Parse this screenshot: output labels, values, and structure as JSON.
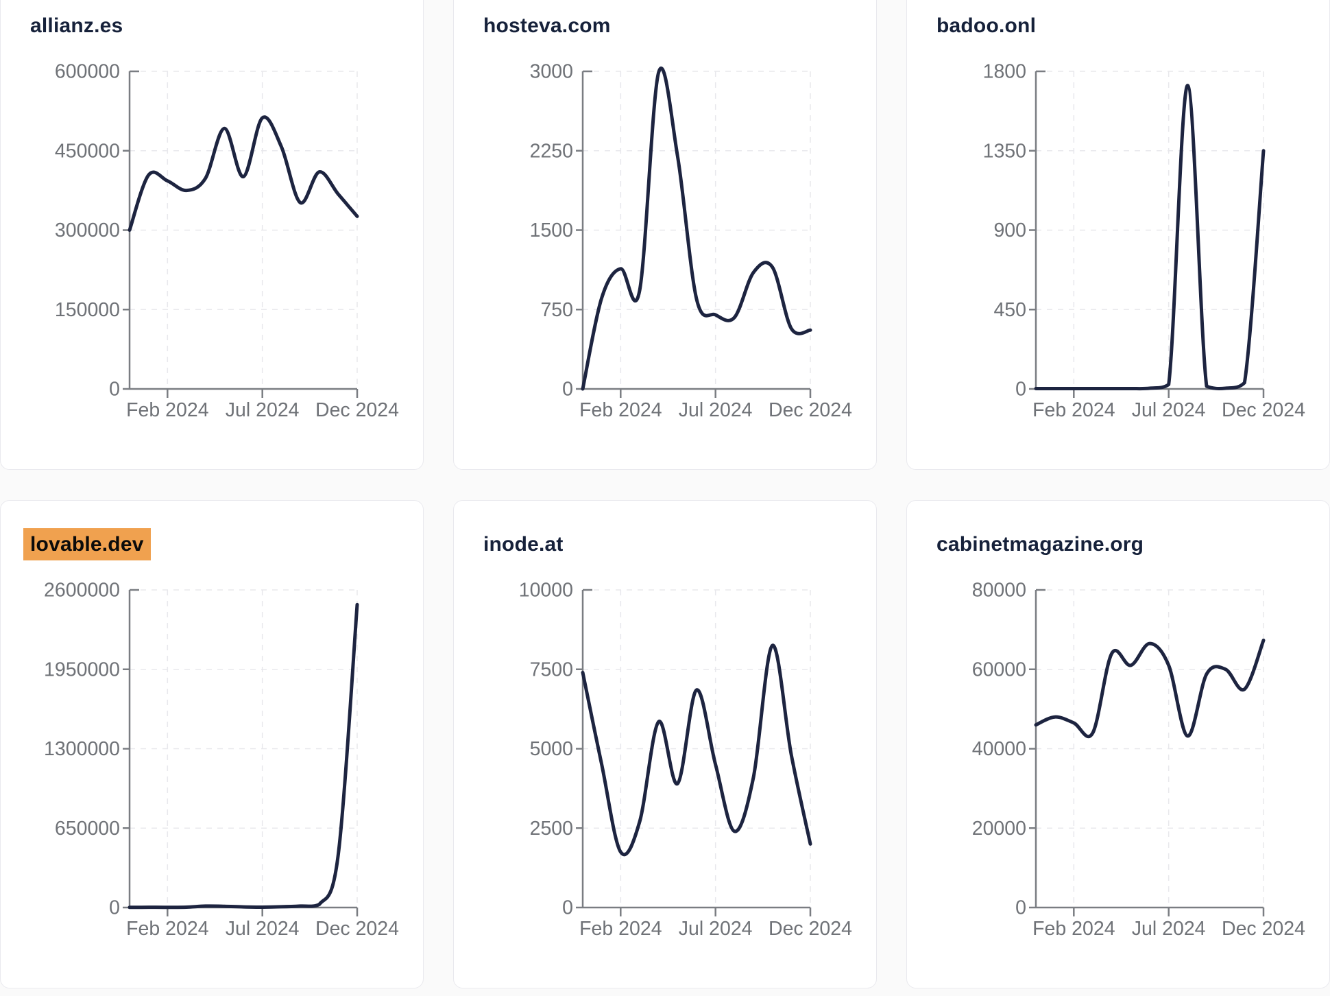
{
  "page": {
    "background": "#FAFAFA"
  },
  "colors": {
    "line": "#1D2440",
    "title_text": "#16213A",
    "tick_label": "#6F7277",
    "axis": "#7A7D82",
    "gridline": "#E8E8EC",
    "card_background": "#FFFFFF",
    "card_border": "#E9E9EE",
    "page_background": "#FAFAFA",
    "highlight": "#F0A14F",
    "highlight_text": "#0B0B0B"
  },
  "chart_data": [
    {
      "type": "line",
      "title": "allianz.es",
      "title_highlighted": false,
      "ylim": [
        0,
        600000
      ],
      "y_ticks": [
        0,
        150000,
        300000,
        450000,
        600000
      ],
      "x_tick_labels": [
        "Feb 2024",
        "Jul 2024",
        "Dec 2024"
      ],
      "x_tick_indices": [
        2,
        7,
        12
      ],
      "n_points": 13,
      "x_range": "Dec 2023 - Dec 2024 (monthly)",
      "grid": "dashed",
      "legend": "none",
      "values": [
        300000,
        404000,
        393000,
        375000,
        398000,
        492000,
        401000,
        512000,
        458000,
        352000,
        410000,
        368000,
        326000
      ]
    },
    {
      "type": "line",
      "title": "hosteva.com",
      "title_highlighted": false,
      "ylim": [
        0,
        3000
      ],
      "y_ticks": [
        0,
        750,
        1500,
        2250,
        3000
      ],
      "x_tick_labels": [
        "Feb 2024",
        "Jul 2024",
        "Dec 2024"
      ],
      "x_tick_indices": [
        2,
        7,
        12
      ],
      "n_points": 13,
      "x_range": "Dec 2023 - Dec 2024 (monthly)",
      "grid": "dashed",
      "legend": "none",
      "values": [
        0,
        860,
        1135,
        930,
        2990,
        2200,
        850,
        700,
        675,
        1100,
        1150,
        570,
        555
      ]
    },
    {
      "type": "line",
      "title": "badoo.onl",
      "title_highlighted": false,
      "ylim": [
        0,
        1800
      ],
      "y_ticks": [
        0,
        450,
        900,
        1350,
        1800
      ],
      "x_tick_labels": [
        "Feb 2024",
        "Jul 2024",
        "Dec 2024"
      ],
      "x_tick_indices": [
        2,
        7,
        12
      ],
      "n_points": 13,
      "x_range": "Dec 2023 - Dec 2024 (monthly)",
      "grid": "dashed",
      "legend": "none",
      "values": [
        2,
        2,
        2,
        2,
        2,
        2,
        4,
        25,
        1720,
        15,
        4,
        35,
        1350
      ]
    },
    {
      "type": "line",
      "title": "lovable.dev",
      "title_highlighted": true,
      "ylim": [
        0,
        2600000
      ],
      "y_ticks": [
        0,
        650000,
        1300000,
        1950000,
        2600000
      ],
      "x_tick_labels": [
        "Feb 2024",
        "Jul 2024",
        "Dec 2024"
      ],
      "x_tick_indices": [
        2,
        7,
        12
      ],
      "n_points": 13,
      "x_range": "Dec 2023 - Dec 2024 (monthly)",
      "grid": "dashed",
      "legend": "none",
      "values": [
        1000,
        2000,
        1500,
        3000,
        12000,
        10000,
        5000,
        3000,
        6000,
        12000,
        25000,
        430000,
        2480000
      ]
    },
    {
      "type": "line",
      "title": "inode.at",
      "title_highlighted": false,
      "ylim": [
        0,
        10000
      ],
      "y_ticks": [
        0,
        2500,
        5000,
        7500,
        10000
      ],
      "x_tick_labels": [
        "Feb 2024",
        "Jul 2024",
        "Dec 2024"
      ],
      "x_tick_indices": [
        2,
        7,
        12
      ],
      "n_points": 13,
      "x_range": "Dec 2023 - Dec 2024 (monthly)",
      "grid": "dashed",
      "legend": "none",
      "values": [
        7400,
        4500,
        1750,
        2700,
        5850,
        3900,
        6850,
        4500,
        2400,
        4100,
        8250,
        4800,
        2000
      ]
    },
    {
      "type": "line",
      "title": "cabinetmagazine.org",
      "title_highlighted": false,
      "ylim": [
        0,
        80000
      ],
      "y_ticks": [
        0,
        20000,
        40000,
        60000,
        80000
      ],
      "x_tick_labels": [
        "Feb 2024",
        "Jul 2024",
        "Dec 2024"
      ],
      "x_tick_indices": [
        2,
        7,
        12
      ],
      "n_points": 13,
      "x_range": "Dec 2023 - Dec 2024 (monthly)",
      "grid": "dashed",
      "legend": "none",
      "values": [
        46000,
        48000,
        46500,
        44000,
        64000,
        61000,
        66500,
        61000,
        43200,
        58800,
        60000,
        55000,
        67300
      ]
    }
  ]
}
